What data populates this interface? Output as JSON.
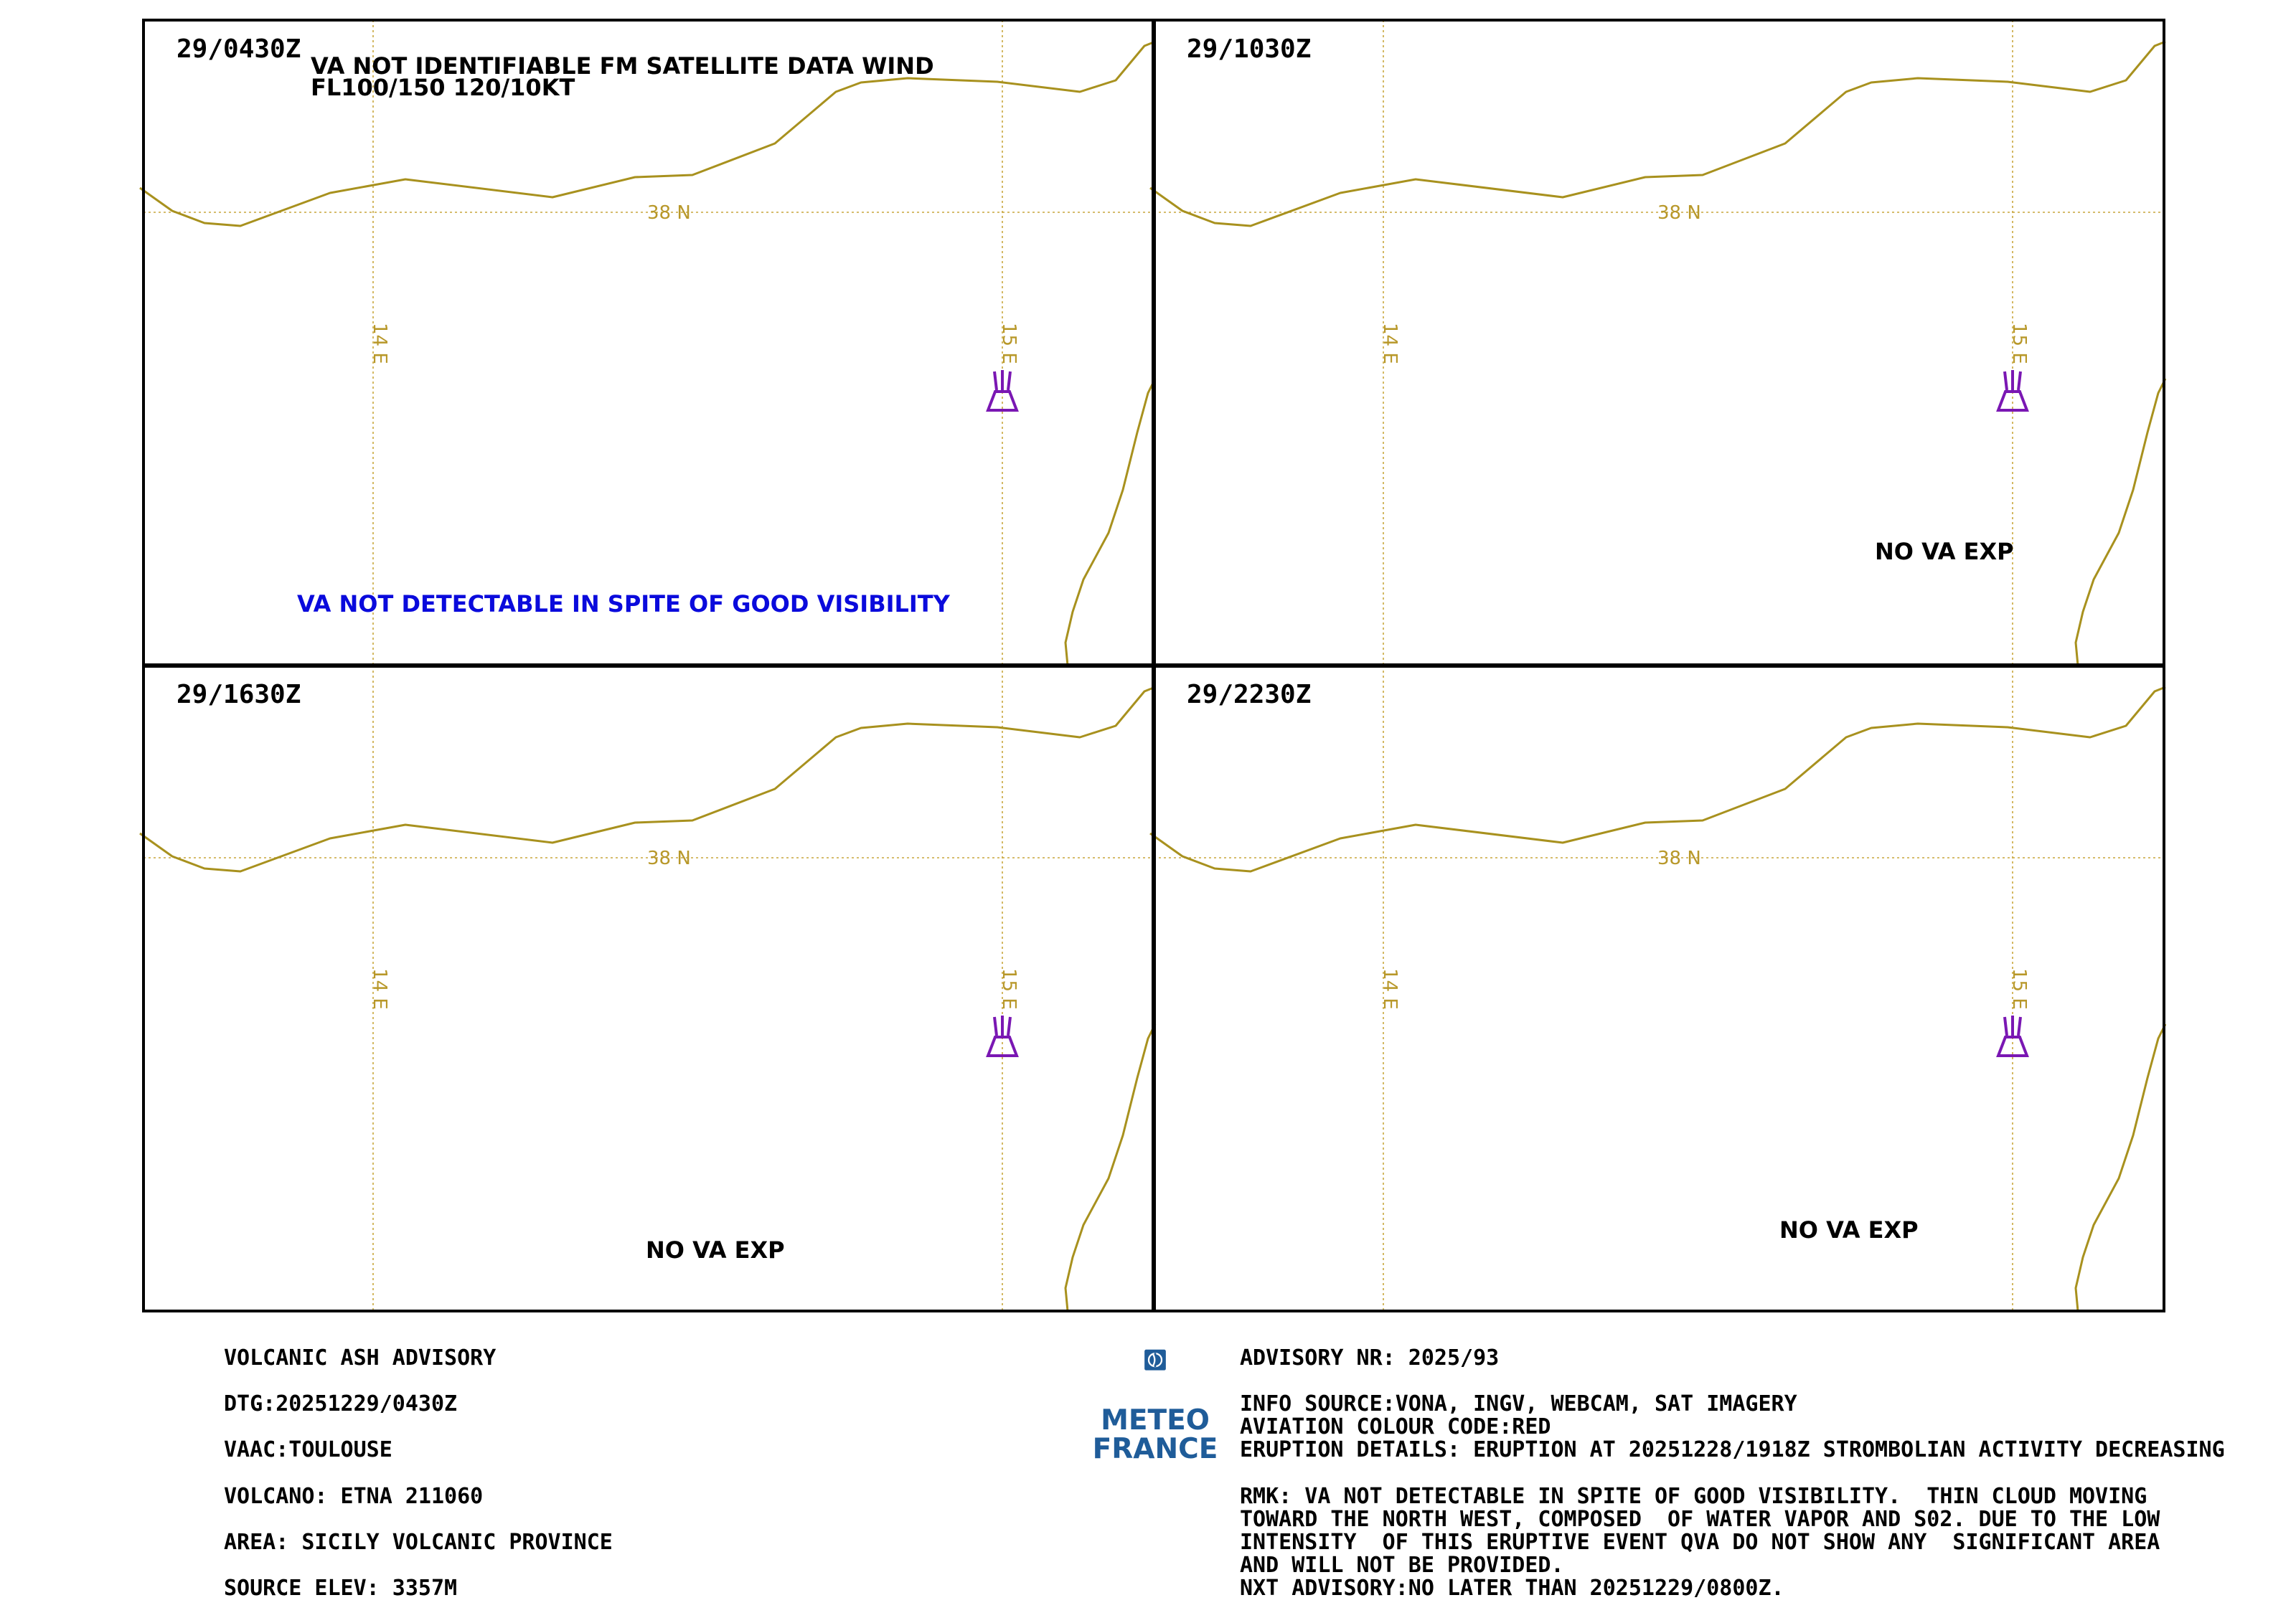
{
  "panels": [
    {
      "time": "29/0430Z",
      "notes": [
        "VA NOT IDENTIFIABLE FM SATELLITE DATA WIND",
        "FL100/150 120/10KT"
      ],
      "blue_note": "VA NOT DETECTABLE IN SPITE OF GOOD VISIBILITY",
      "exp_note": ""
    },
    {
      "time": "29/1030Z",
      "notes": [],
      "blue_note": "",
      "exp_note": "NO VA EXP"
    },
    {
      "time": "29/1630Z",
      "notes": [],
      "blue_note": "",
      "exp_note": "NO VA EXP"
    },
    {
      "time": "29/2230Z",
      "notes": [],
      "blue_note": "",
      "exp_note": "NO VA EXP"
    }
  ],
  "grid_labels": {
    "lat": "38 N",
    "lon_left": "14 E",
    "lon_right": "15 E"
  },
  "colors": {
    "coast": "#a8911e",
    "grid": "#c8a63c",
    "volcano": "#7a17b3",
    "blue_note": "#0a0adc",
    "logo": "#1f5c99"
  },
  "icons": {
    "volcano": "volcano-icon",
    "logo": "meteo-france-logo"
  },
  "footer_left": [
    "VOLCANIC ASH ADVISORY",
    "DTG:20251229/0430Z",
    "VAAC:TOULOUSE",
    "VOLCANO: ETNA 211060",
    "AREA: SICILY VOLCANIC PROVINCE",
    "SOURCE ELEV: 3357M"
  ],
  "footer_right": {
    "advisory_nr": "ADVISORY NR: 2025/93",
    "info_source": "INFO SOURCE:VONA, INGV, WEBCAM, SAT IMAGERY",
    "colour_code": "AVIATION COLOUR CODE:RED",
    "eruption_details": "ERUPTION DETAILS: ERUPTION AT 20251228/1918Z STROMBOLIAN ACTIVITY DECREASING",
    "rmk_lines": [
      "RMK: VA NOT DETECTABLE IN SPITE OF GOOD VISIBILITY.  THIN CLOUD MOVING",
      "TOWARD THE NORTH WEST, COMPOSED  OF WATER VAPOR AND S02. DUE TO THE LOW",
      "INTENSITY  OF THIS ERUPTIVE EVENT QVA DO NOT SHOW ANY  SIGNIFICANT AREA",
      "AND WILL NOT BE PROVIDED."
    ],
    "next_advisory": "NXT ADVISORY:NO LATER THAN 20251229/0800Z."
  },
  "logo": {
    "line1": "METEO",
    "line2": "FRANCE"
  }
}
